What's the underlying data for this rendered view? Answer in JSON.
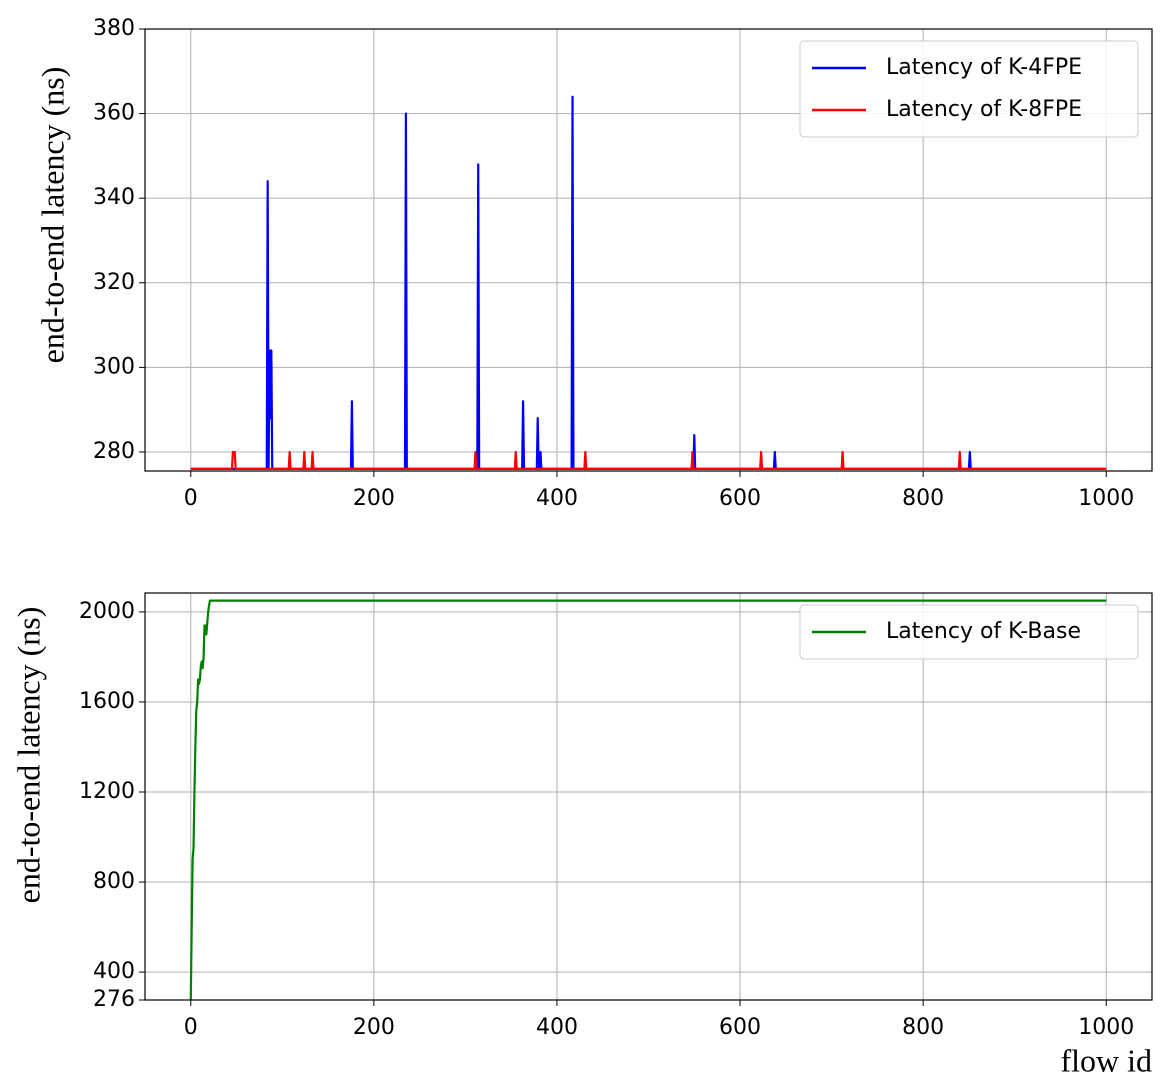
{
  "chart_data": [
    {
      "type": "line",
      "ylabel": "end-to-end latency  (ns)",
      "xlim": [
        -50,
        1050
      ],
      "ylim": [
        275.5,
        380
      ],
      "xticks": [
        0,
        200,
        400,
        600,
        800,
        1000
      ],
      "yticks": [
        280,
        300,
        320,
        340,
        360,
        380
      ],
      "grid": true,
      "legend": "upper right",
      "series": [
        {
          "name": "Latency of K-4FPE",
          "color": "#0000ff",
          "x": [
            0,
            83,
            84,
            85,
            86,
            87,
            88,
            89,
            175,
            176,
            177,
            234,
            235,
            236,
            313,
            314,
            315,
            362,
            363,
            364,
            378,
            379,
            380,
            381,
            382,
            383,
            416,
            417,
            418,
            549,
            550,
            551,
            637,
            638,
            639,
            850,
            851,
            852,
            1000
          ],
          "values": [
            276,
            276,
            344,
            276,
            304,
            288,
            304,
            276,
            276,
            292,
            276,
            276,
            360,
            276,
            276,
            348,
            276,
            276,
            292,
            276,
            276,
            288,
            276,
            276,
            280,
            276,
            276,
            364,
            276,
            276,
            284,
            276,
            276,
            280,
            276,
            276,
            280,
            276,
            276
          ]
        },
        {
          "name": "Latency of K-8FPE",
          "color": "#ff0000",
          "x": [
            0,
            45,
            46,
            47,
            48,
            49,
            107,
            108,
            109,
            123,
            124,
            125,
            132,
            133,
            134,
            310,
            311,
            312,
            354,
            355,
            356,
            430,
            431,
            432,
            547,
            548,
            549,
            622,
            623,
            624,
            711,
            712,
            713,
            839,
            840,
            841,
            1000
          ],
          "values": [
            276,
            276,
            280,
            280,
            280,
            276,
            276,
            280,
            276,
            276,
            280,
            276,
            276,
            280,
            276,
            276,
            280,
            276,
            276,
            280,
            276,
            276,
            280,
            276,
            276,
            280,
            276,
            276,
            280,
            276,
            276,
            280,
            276,
            276,
            280,
            276,
            276
          ]
        }
      ]
    },
    {
      "type": "line",
      "ylabel": "end-to-end latency  (ns)",
      "xlabel": "flow id",
      "xlim": [
        -50,
        1050
      ],
      "ylim": [
        276,
        2084
      ],
      "xticks": [
        0,
        200,
        400,
        600,
        800,
        1000
      ],
      "yticks": [
        276,
        400,
        800,
        1200,
        1600,
        2000
      ],
      "grid": true,
      "legend": "upper right",
      "series": [
        {
          "name": "Latency of K-Base",
          "color": "#008000",
          "x": [
            0,
            1,
            2,
            3,
            4,
            5,
            6,
            7,
            8,
            9,
            10,
            11,
            12,
            13,
            14,
            15,
            16,
            17,
            18,
            19,
            20,
            21,
            22,
            1000
          ],
          "values": [
            276,
            600,
            900,
            950,
            1200,
            1400,
            1560,
            1600,
            1700,
            1680,
            1700,
            1760,
            1780,
            1750,
            1800,
            1940,
            1940,
            1900,
            1950,
            2000,
            2030,
            2050,
            2050,
            2050
          ]
        }
      ]
    }
  ]
}
